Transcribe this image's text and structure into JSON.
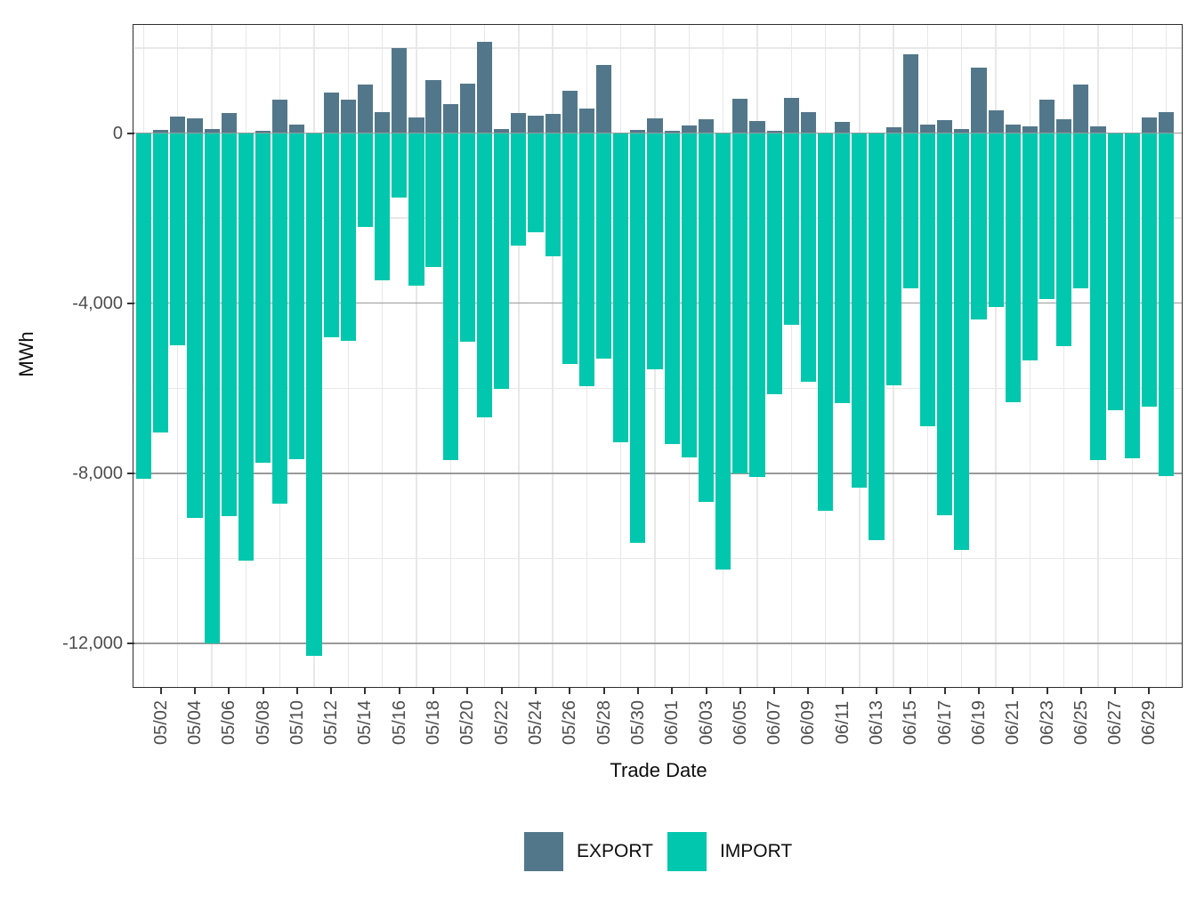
{
  "chart_data": {
    "type": "bar",
    "title": "",
    "xlabel": "Trade Date",
    "ylabel": "MWh",
    "legend_position": "bottom",
    "grid": {
      "major_color": "#9a9a9a",
      "minor_color": "#e8e8e8",
      "border_color": "#2e2e2e",
      "background": "#ffffff"
    },
    "ylim": [
      -13050,
      2550
    ],
    "y_ticks": [
      {
        "value": 0,
        "label": "0"
      },
      {
        "value": -4000,
        "label": "-4,000"
      },
      {
        "value": -8000,
        "label": "-8,000"
      },
      {
        "value": -12000,
        "label": "-12,000"
      }
    ],
    "y_minor_ticks": [
      2000,
      -2000,
      -6000,
      -10000
    ],
    "x_tick_labels": [
      "05/02",
      "05/04",
      "05/06",
      "05/08",
      "05/10",
      "05/12",
      "05/14",
      "05/16",
      "05/18",
      "05/20",
      "05/22",
      "05/24",
      "05/26",
      "05/28",
      "05/30",
      "06/01",
      "06/03",
      "06/05",
      "06/07",
      "06/09",
      "06/11",
      "06/13",
      "06/15",
      "06/17",
      "06/19",
      "06/21",
      "06/23",
      "06/25",
      "06/27",
      "06/29"
    ],
    "categories": [
      "05/01",
      "05/02",
      "05/03",
      "05/04",
      "05/05",
      "05/06",
      "05/07",
      "05/08",
      "05/09",
      "05/10",
      "05/11",
      "05/12",
      "05/13",
      "05/14",
      "05/15",
      "05/16",
      "05/17",
      "05/18",
      "05/19",
      "05/20",
      "05/21",
      "05/22",
      "05/23",
      "05/24",
      "05/25",
      "05/26",
      "05/27",
      "05/28",
      "05/29",
      "05/30",
      "05/31",
      "06/01",
      "06/02",
      "06/03",
      "06/04",
      "06/05",
      "06/06",
      "06/07",
      "06/08",
      "06/09",
      "06/10",
      "06/11",
      "06/12",
      "06/13",
      "06/14",
      "06/15",
      "06/16",
      "06/17",
      "06/18",
      "06/19",
      "06/20",
      "06/21",
      "06/22",
      "06/23",
      "06/24",
      "06/25",
      "06/26",
      "06/27",
      "06/28",
      "06/29",
      "06/30"
    ],
    "series": [
      {
        "name": "EXPORT",
        "color": "#53778a",
        "values": [
          0,
          80,
          395,
          345,
          100,
          465,
          0,
          50,
          775,
          200,
          0,
          955,
          775,
          1150,
          500,
          2005,
          360,
          1235,
          670,
          1170,
          2140,
          100,
          475,
          410,
          460,
          985,
          565,
          1600,
          0,
          65,
          345,
          45,
          170,
          325,
          0,
          800,
          285,
          60,
          830,
          500,
          0,
          260,
          0,
          0,
          135,
          1850,
          200,
          305,
          100,
          1540,
          530,
          195,
          160,
          790,
          320,
          1130,
          150,
          0,
          0,
          365,
          495
        ]
      },
      {
        "name": "IMPORT",
        "color": "#00c7ad",
        "values": [
          -8130,
          -7050,
          -4990,
          -9040,
          -11990,
          -9000,
          -10060,
          -7750,
          -8720,
          -7670,
          -12290,
          -4800,
          -4880,
          -2210,
          -3470,
          -1510,
          -3590,
          -3150,
          -7690,
          -4910,
          -6680,
          -6020,
          -2650,
          -2340,
          -2890,
          -5430,
          -5960,
          -5310,
          -7270,
          -9630,
          -5560,
          -7310,
          -7630,
          -8680,
          -10260,
          -8000,
          -8090,
          -6150,
          -4510,
          -5840,
          -8890,
          -6340,
          -8340,
          -9580,
          -5940,
          -3660,
          -6900,
          -8990,
          -9800,
          -4380,
          -4100,
          -6320,
          -5350,
          -3910,
          -5010,
          -3660,
          -7690,
          -6510,
          -7650,
          -6440,
          -8070
        ]
      }
    ]
  }
}
